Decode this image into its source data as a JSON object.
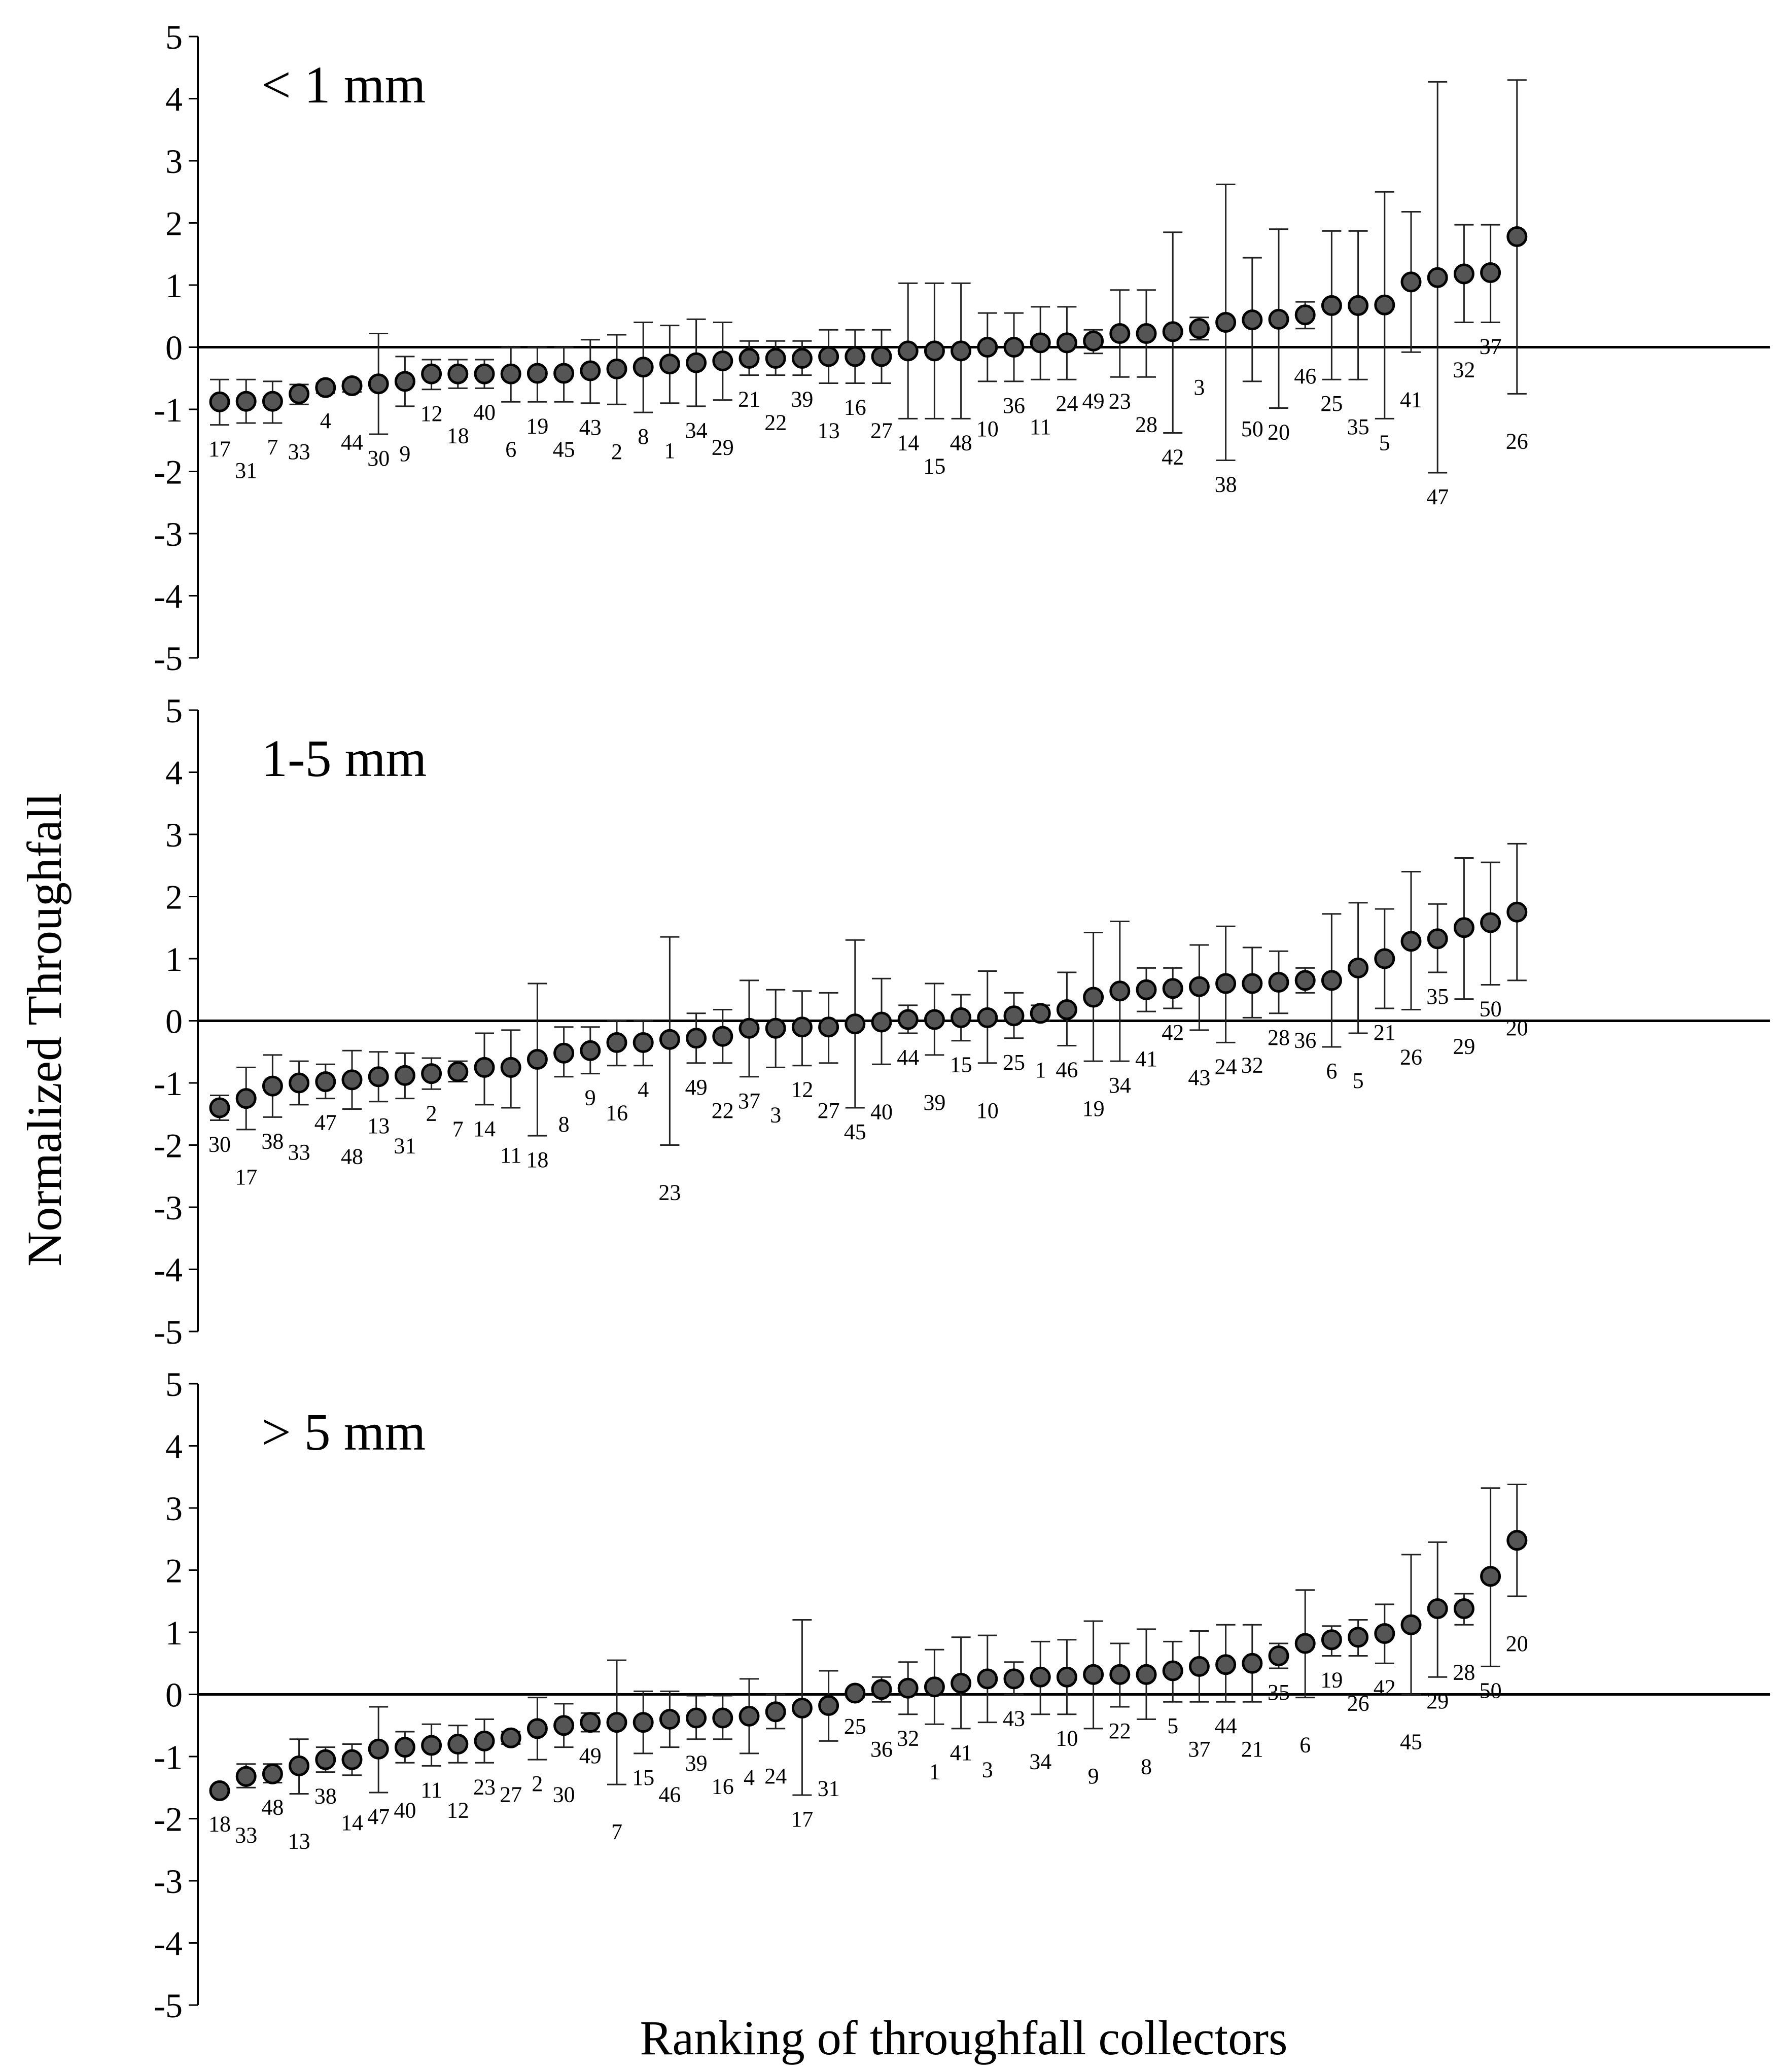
{
  "chart_data": {
    "type": "scatter",
    "ylabel": "Normalized Throughfall",
    "xlabel": "Ranking of throughfall collectors",
    "ylim": [
      -5,
      5
    ],
    "yticks": [
      "5",
      "4",
      "3",
      "2",
      "1",
      "0",
      "-1",
      "-2",
      "-3",
      "-4",
      "-5"
    ],
    "marker_color": "#555555",
    "panels": [
      {
        "title": "< 1 mm",
        "series": [
          {
            "id": "17",
            "mean": -0.88,
            "low": -1.25,
            "high": -0.52
          },
          {
            "id": "31",
            "mean": -0.87,
            "low": -1.22,
            "high": -0.52
          },
          {
            "id": "7",
            "mean": -0.87,
            "low": -1.22,
            "high": -0.55
          },
          {
            "id": "33",
            "mean": -0.75,
            "low": -0.92,
            "high": -0.6
          },
          {
            "id": "4",
            "mean": -0.65,
            "low": -0.74,
            "high": -0.58
          },
          {
            "id": "44",
            "mean": -0.62,
            "low": -0.72,
            "high": -0.55
          },
          {
            "id": "30",
            "mean": -0.59,
            "low": -1.4,
            "high": 0.22
          },
          {
            "id": "9",
            "mean": -0.55,
            "low": -0.95,
            "high": -0.15
          },
          {
            "id": "12",
            "mean": -0.43,
            "low": -0.68,
            "high": -0.2
          },
          {
            "id": "18",
            "mean": -0.43,
            "low": -0.66,
            "high": -0.2
          },
          {
            "id": "40",
            "mean": -0.43,
            "low": -0.66,
            "high": -0.2
          },
          {
            "id": "6",
            "mean": -0.43,
            "low": -0.88,
            "high": 0.0
          },
          {
            "id": "19",
            "mean": -0.42,
            "low": -0.88,
            "high": 0.0
          },
          {
            "id": "45",
            "mean": -0.42,
            "low": -0.88,
            "high": 0.0
          },
          {
            "id": "43",
            "mean": -0.38,
            "low": -0.9,
            "high": 0.12
          },
          {
            "id": "2",
            "mean": -0.35,
            "low": -0.92,
            "high": 0.2
          },
          {
            "id": "8",
            "mean": -0.32,
            "low": -1.05,
            "high": 0.4
          },
          {
            "id": "1",
            "mean": -0.27,
            "low": -0.9,
            "high": 0.35
          },
          {
            "id": "34",
            "mean": -0.25,
            "low": -0.95,
            "high": 0.45
          },
          {
            "id": "29",
            "mean": -0.22,
            "low": -0.85,
            "high": 0.4
          },
          {
            "id": "21",
            "mean": -0.18,
            "low": -0.45,
            "high": 0.1
          },
          {
            "id": "22",
            "mean": -0.18,
            "low": -0.45,
            "high": 0.1
          },
          {
            "id": "39",
            "mean": -0.18,
            "low": -0.45,
            "high": 0.1
          },
          {
            "id": "13",
            "mean": -0.15,
            "low": -0.58,
            "high": 0.28
          },
          {
            "id": "16",
            "mean": -0.15,
            "low": -0.58,
            "high": 0.28
          },
          {
            "id": "27",
            "mean": -0.15,
            "low": -0.58,
            "high": 0.28
          },
          {
            "id": "14",
            "mean": -0.06,
            "low": -1.15,
            "high": 1.03
          },
          {
            "id": "15",
            "mean": -0.06,
            "low": -1.15,
            "high": 1.03
          },
          {
            "id": "48",
            "mean": -0.06,
            "low": -1.15,
            "high": 1.03
          },
          {
            "id": "10",
            "mean": 0.0,
            "low": -0.55,
            "high": 0.55
          },
          {
            "id": "36",
            "mean": 0.0,
            "low": -0.55,
            "high": 0.55
          },
          {
            "id": "11",
            "mean": 0.07,
            "low": -0.52,
            "high": 0.65
          },
          {
            "id": "24",
            "mean": 0.07,
            "low": -0.52,
            "high": 0.65
          },
          {
            "id": "49",
            "mean": 0.1,
            "low": -0.1,
            "high": 0.28
          },
          {
            "id": "23",
            "mean": 0.22,
            "low": -0.48,
            "high": 0.92
          },
          {
            "id": "28",
            "mean": 0.22,
            "low": -0.48,
            "high": 0.92
          },
          {
            "id": "42",
            "mean": 0.25,
            "low": -1.38,
            "high": 1.85
          },
          {
            "id": "3",
            "mean": 0.3,
            "low": 0.12,
            "high": 0.48
          },
          {
            "id": "38",
            "mean": 0.4,
            "low": -1.82,
            "high": 2.62
          },
          {
            "id": "50",
            "mean": 0.44,
            "low": -0.55,
            "high": 1.44
          },
          {
            "id": "20",
            "mean": 0.45,
            "low": -0.98,
            "high": 1.9
          },
          {
            "id": "46",
            "mean": 0.52,
            "low": 0.3,
            "high": 0.73
          },
          {
            "id": "25",
            "mean": 0.67,
            "low": -0.52,
            "high": 1.87
          },
          {
            "id": "35",
            "mean": 0.67,
            "low": -0.52,
            "high": 1.87
          },
          {
            "id": "5",
            "mean": 0.68,
            "low": -1.15,
            "high": 2.5
          },
          {
            "id": "41",
            "mean": 1.05,
            "low": -0.08,
            "high": 2.18
          },
          {
            "id": "47",
            "mean": 1.12,
            "low": -2.02,
            "high": 4.27
          },
          {
            "id": "32",
            "mean": 1.18,
            "low": 0.4,
            "high": 1.97
          },
          {
            "id": "37",
            "mean": 1.2,
            "low": 0.4,
            "high": 1.97
          },
          {
            "id": "26",
            "mean": 1.78,
            "low": -0.75,
            "high": 4.3
          }
        ]
      },
      {
        "title": "1-5 mm",
        "series": [
          {
            "id": "30",
            "mean": -1.4,
            "low": -1.6,
            "high": -1.2
          },
          {
            "id": "17",
            "mean": -1.25,
            "low": -1.75,
            "high": -0.75
          },
          {
            "id": "38",
            "mean": -1.05,
            "low": -1.55,
            "high": -0.55
          },
          {
            "id": "33",
            "mean": -1.0,
            "low": -1.35,
            "high": -0.65
          },
          {
            "id": "47",
            "mean": -0.98,
            "low": -1.25,
            "high": -0.7
          },
          {
            "id": "48",
            "mean": -0.95,
            "low": -1.42,
            "high": -0.48
          },
          {
            "id": "13",
            "mean": -0.9,
            "low": -1.3,
            "high": -0.5
          },
          {
            "id": "31",
            "mean": -0.88,
            "low": -1.25,
            "high": -0.52
          },
          {
            "id": "2",
            "mean": -0.85,
            "low": -1.1,
            "high": -0.6
          },
          {
            "id": "7",
            "mean": -0.82,
            "low": -0.98,
            "high": -0.65
          },
          {
            "id": "14",
            "mean": -0.75,
            "low": -1.35,
            "high": -0.2
          },
          {
            "id": "11",
            "mean": -0.75,
            "low": -1.4,
            "high": -0.15
          },
          {
            "id": "18",
            "mean": -0.62,
            "low": -1.85,
            "high": 0.6
          },
          {
            "id": "8",
            "mean": -0.52,
            "low": -0.9,
            "high": -0.1
          },
          {
            "id": "9",
            "mean": -0.48,
            "low": -0.85,
            "high": -0.1
          },
          {
            "id": "16",
            "mean": -0.35,
            "low": -0.72,
            "high": 0.0
          },
          {
            "id": "4",
            "mean": -0.35,
            "low": -0.72,
            "high": 0.0
          },
          {
            "id": "23",
            "mean": -0.3,
            "low": -2.0,
            "high": 1.35
          },
          {
            "id": "49",
            "mean": -0.28,
            "low": -0.68,
            "high": 0.12
          },
          {
            "id": "22",
            "mean": -0.25,
            "low": -0.68,
            "high": 0.18
          },
          {
            "id": "37",
            "mean": -0.12,
            "low": -0.9,
            "high": 0.65
          },
          {
            "id": "3",
            "mean": -0.12,
            "low": -0.75,
            "high": 0.5
          },
          {
            "id": "12",
            "mean": -0.1,
            "low": -0.72,
            "high": 0.48
          },
          {
            "id": "27",
            "mean": -0.1,
            "low": -0.68,
            "high": 0.45
          },
          {
            "id": "45",
            "mean": -0.05,
            "low": -1.4,
            "high": 1.3
          },
          {
            "id": "40",
            "mean": -0.02,
            "low": -0.7,
            "high": 0.68
          },
          {
            "id": "44",
            "mean": 0.02,
            "low": -0.2,
            "high": 0.25
          },
          {
            "id": "39",
            "mean": 0.02,
            "low": -0.55,
            "high": 0.6
          },
          {
            "id": "15",
            "mean": 0.05,
            "low": -0.32,
            "high": 0.42
          },
          {
            "id": "10",
            "mean": 0.05,
            "low": -0.68,
            "high": 0.8
          },
          {
            "id": "25",
            "mean": 0.08,
            "low": -0.28,
            "high": 0.45
          },
          {
            "id": "1",
            "mean": 0.12,
            "low": 0.0,
            "high": 0.25
          },
          {
            "id": "46",
            "mean": 0.18,
            "low": -0.4,
            "high": 0.78
          },
          {
            "id": "19",
            "mean": 0.38,
            "low": -0.65,
            "high": 1.42
          },
          {
            "id": "34",
            "mean": 0.48,
            "low": -0.65,
            "high": 1.6
          },
          {
            "id": "41",
            "mean": 0.5,
            "low": 0.15,
            "high": 0.85
          },
          {
            "id": "42",
            "mean": 0.52,
            "low": 0.2,
            "high": 0.85
          },
          {
            "id": "43",
            "mean": 0.55,
            "low": -0.15,
            "high": 1.22
          },
          {
            "id": "24",
            "mean": 0.6,
            "low": -0.35,
            "high": 1.52
          },
          {
            "id": "32",
            "mean": 0.6,
            "low": 0.05,
            "high": 1.18
          },
          {
            "id": "28",
            "mean": 0.62,
            "low": 0.12,
            "high": 1.12
          },
          {
            "id": "36",
            "mean": 0.65,
            "low": 0.45,
            "high": 0.85
          },
          {
            "id": "6",
            "mean": 0.65,
            "low": -0.42,
            "high": 1.72
          },
          {
            "id": "5",
            "mean": 0.85,
            "low": -0.2,
            "high": 1.9
          },
          {
            "id": "21",
            "mean": 1.0,
            "low": 0.2,
            "high": 1.8
          },
          {
            "id": "26",
            "mean": 1.28,
            "low": 0.18,
            "high": 2.4
          },
          {
            "id": "35",
            "mean": 1.32,
            "low": 0.78,
            "high": 1.88
          },
          {
            "id": "29",
            "mean": 1.5,
            "low": 0.35,
            "high": 2.62
          },
          {
            "id": "50",
            "mean": 1.58,
            "low": 0.58,
            "high": 2.55
          },
          {
            "id": "20",
            "mean": 1.75,
            "low": 0.65,
            "high": 2.85
          }
        ]
      },
      {
        "title": "> 5 mm",
        "series": [
          {
            "id": "18",
            "mean": -1.55,
            "low": -1.55,
            "high": -1.55
          },
          {
            "id": "33",
            "mean": -1.32,
            "low": -1.5,
            "high": -1.12
          },
          {
            "id": "48",
            "mean": -1.28,
            "low": -1.42,
            "high": -1.12
          },
          {
            "id": "13",
            "mean": -1.15,
            "low": -1.6,
            "high": -0.72
          },
          {
            "id": "38",
            "mean": -1.05,
            "low": -1.25,
            "high": -0.85
          },
          {
            "id": "14",
            "mean": -1.05,
            "low": -1.3,
            "high": -0.8
          },
          {
            "id": "47",
            "mean": -0.88,
            "low": -1.58,
            "high": -0.2
          },
          {
            "id": "40",
            "mean": -0.85,
            "low": -1.1,
            "high": -0.6
          },
          {
            "id": "11",
            "mean": -0.82,
            "low": -1.15,
            "high": -0.48
          },
          {
            "id": "12",
            "mean": -0.8,
            "low": -1.1,
            "high": -0.5
          },
          {
            "id": "23",
            "mean": -0.75,
            "low": -1.1,
            "high": -0.4
          },
          {
            "id": "27",
            "mean": -0.7,
            "low": -0.8,
            "high": -0.6
          },
          {
            "id": "2",
            "mean": -0.55,
            "low": -1.05,
            "high": -0.05
          },
          {
            "id": "30",
            "mean": -0.5,
            "low": -0.85,
            "high": -0.15
          },
          {
            "id": "49",
            "mean": -0.45,
            "low": -0.6,
            "high": -0.3
          },
          {
            "id": "7",
            "mean": -0.45,
            "low": -1.45,
            "high": 0.55
          },
          {
            "id": "15",
            "mean": -0.45,
            "low": -0.95,
            "high": 0.05
          },
          {
            "id": "46",
            "mean": -0.4,
            "low": -0.85,
            "high": 0.05
          },
          {
            "id": "39",
            "mean": -0.38,
            "low": -0.72,
            "high": -0.02
          },
          {
            "id": "16",
            "mean": -0.38,
            "low": -0.72,
            "high": -0.02
          },
          {
            "id": "4",
            "mean": -0.35,
            "low": -0.95,
            "high": 0.25
          },
          {
            "id": "24",
            "mean": -0.28,
            "low": -0.55,
            "high": 0.0
          },
          {
            "id": "17",
            "mean": -0.22,
            "low": -1.62,
            "high": 1.2
          },
          {
            "id": "31",
            "mean": -0.18,
            "low": -0.75,
            "high": 0.38
          },
          {
            "id": "25",
            "mean": 0.02,
            "low": -0.05,
            "high": 0.08
          },
          {
            "id": "36",
            "mean": 0.08,
            "low": -0.12,
            "high": 0.28
          },
          {
            "id": "32",
            "mean": 0.1,
            "low": -0.32,
            "high": 0.52
          },
          {
            "id": "1",
            "mean": 0.12,
            "low": -0.48,
            "high": 0.72
          },
          {
            "id": "41",
            "mean": 0.18,
            "low": -0.55,
            "high": 0.92
          },
          {
            "id": "3",
            "mean": 0.25,
            "low": -0.45,
            "high": 0.95
          },
          {
            "id": "43",
            "mean": 0.25,
            "low": 0.0,
            "high": 0.52
          },
          {
            "id": "34",
            "mean": 0.28,
            "low": -0.32,
            "high": 0.85
          },
          {
            "id": "10",
            "mean": 0.28,
            "low": -0.32,
            "high": 0.88
          },
          {
            "id": "9",
            "mean": 0.32,
            "low": -0.55,
            "high": 1.18
          },
          {
            "id": "22",
            "mean": 0.32,
            "low": -0.2,
            "high": 0.82
          },
          {
            "id": "8",
            "mean": 0.32,
            "low": -0.4,
            "high": 1.05
          },
          {
            "id": "5",
            "mean": 0.38,
            "low": -0.12,
            "high": 0.85
          },
          {
            "id": "37",
            "mean": 0.45,
            "low": -0.12,
            "high": 1.02
          },
          {
            "id": "44",
            "mean": 0.48,
            "low": -0.12,
            "high": 1.12
          },
          {
            "id": "21",
            "mean": 0.5,
            "low": -0.12,
            "high": 1.12
          },
          {
            "id": "35",
            "mean": 0.62,
            "low": 0.42,
            "high": 0.82
          },
          {
            "id": "6",
            "mean": 0.82,
            "low": -0.05,
            "high": 1.68
          },
          {
            "id": "19",
            "mean": 0.88,
            "low": 0.62,
            "high": 1.1
          },
          {
            "id": "26",
            "mean": 0.92,
            "low": 0.62,
            "high": 1.2
          },
          {
            "id": "42",
            "mean": 0.98,
            "low": 0.5,
            "high": 1.45
          },
          {
            "id": "45",
            "mean": 1.12,
            "low": 0.0,
            "high": 2.25
          },
          {
            "id": "29",
            "mean": 1.38,
            "low": 0.28,
            "high": 2.45
          },
          {
            "id": "28",
            "mean": 1.38,
            "low": 1.12,
            "high": 1.62
          },
          {
            "id": "50",
            "mean": 1.9,
            "low": 0.45,
            "high": 3.32
          },
          {
            "id": "20",
            "mean": 2.48,
            "low": 1.58,
            "high": 3.38
          }
        ]
      }
    ]
  }
}
